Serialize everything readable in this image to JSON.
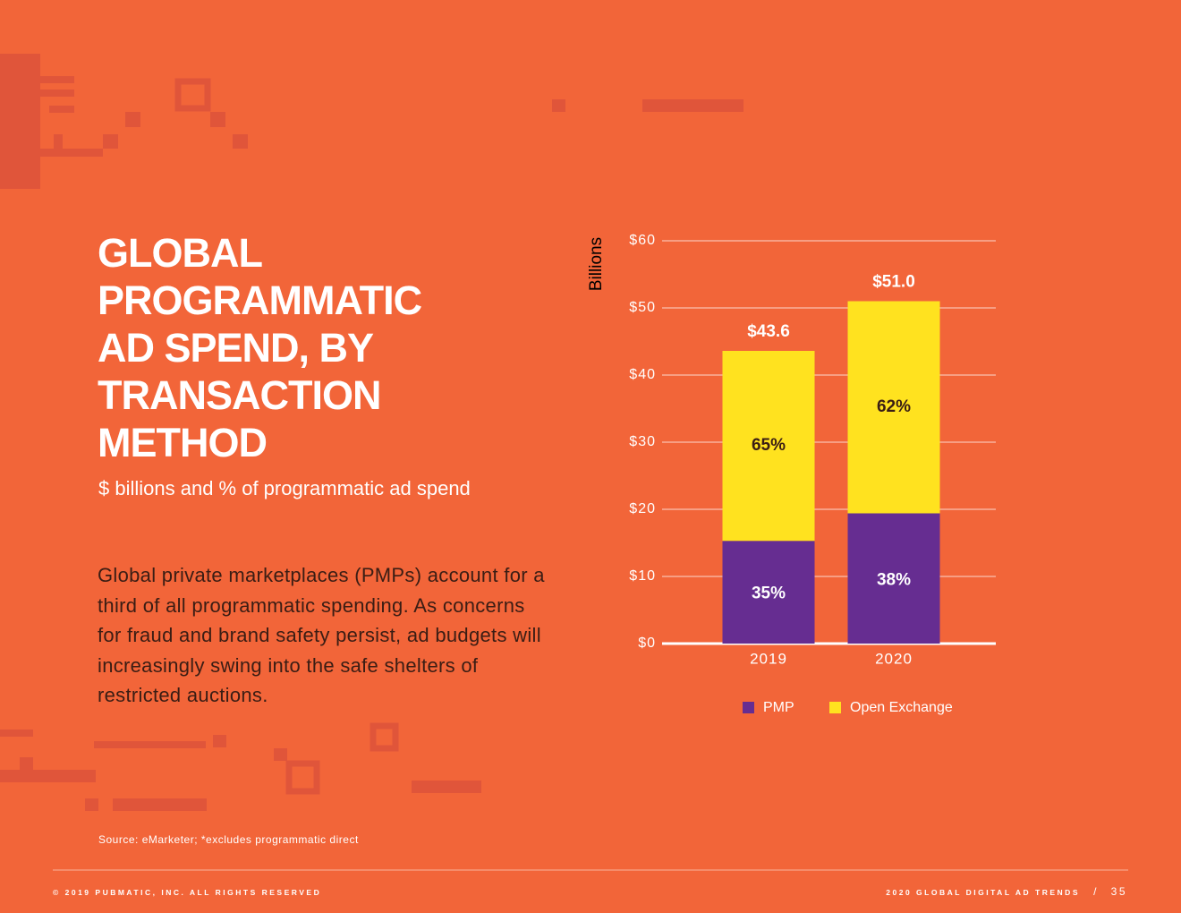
{
  "chart_data": {
    "type": "stacked_bar",
    "title": "GLOBAL PROGRAMMATIC AD SPEND, BY TRANSACTION METHOD",
    "subtitle": "$ billions and % of programmatic ad spend",
    "y_label": "Billions",
    "categories": [
      "2019",
      "2020"
    ],
    "series": [
      {
        "name": "PMP",
        "color": "#662d91",
        "values": [
          15.3,
          19.4
        ],
        "share_labels": [
          "35%",
          "38%"
        ]
      },
      {
        "name": "Open Exchange",
        "color": "#ffe21f",
        "values": [
          28.3,
          31.6
        ],
        "share_labels": [
          "65%",
          "62%"
        ]
      }
    ],
    "totals": {
      "values": [
        43.6,
        51.0
      ],
      "value_labels": [
        "$43.6",
        "$51.0"
      ]
    },
    "ylim": [
      0,
      60
    ],
    "yticks": [
      {
        "value": 0,
        "label": "$0"
      },
      {
        "value": 10,
        "label": "$10"
      },
      {
        "value": 20,
        "label": "$20"
      },
      {
        "value": 30,
        "label": "$30"
      },
      {
        "value": 40,
        "label": "$40"
      },
      {
        "value": 50,
        "label": "$50"
      },
      {
        "value": 60,
        "label": "$60"
      }
    ],
    "grid": true,
    "legend": "bottom"
  },
  "body": "Global private marketplaces (PMPs) account for a third of all programmatic spending. As concerns for fraud and brand safety persist, ad budgets will increasingly swing into the safe shelters of restricted auctions.",
  "source": "Source: eMarketer; *excludes programmatic direct",
  "footer": {
    "left": "© 2019 PUBMATIC, INC. ALL RIGHTS RESERVED",
    "right": "2020 GLOBAL DIGITAL AD TRENDS",
    "page": "35"
  }
}
